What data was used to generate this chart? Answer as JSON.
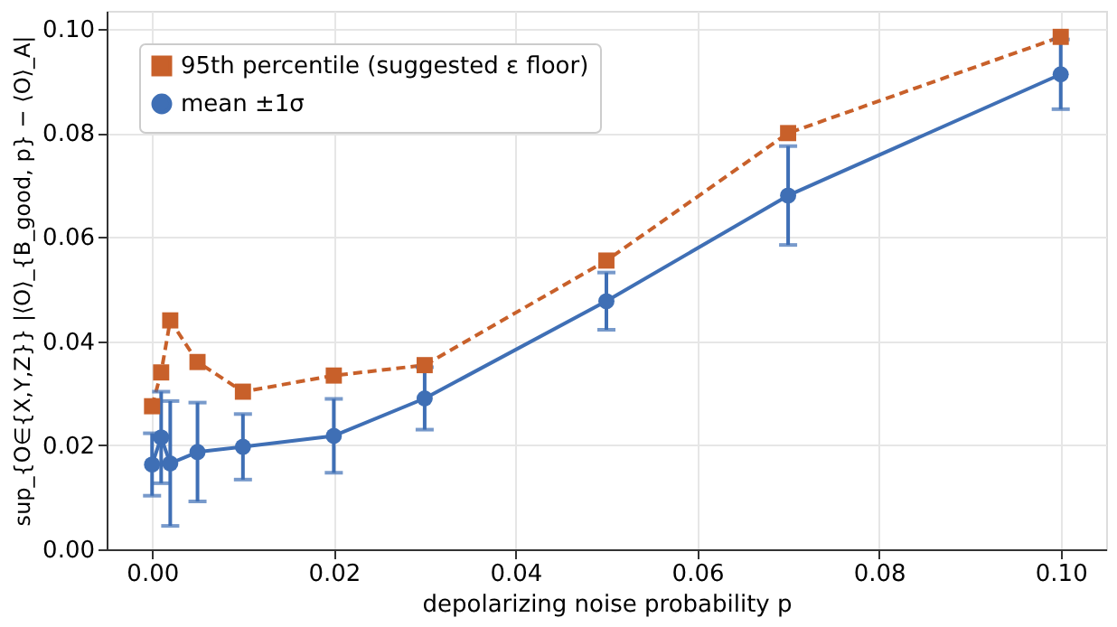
{
  "chart_data": {
    "type": "line",
    "xlabel": "depolarizing noise probability p",
    "ylabel": "sup_{O∈{X,Y,Z}} |⟨O⟩_{B_good, p} − ⟨O⟩_A|",
    "x": [
      0,
      0.001,
      0.002,
      0.005,
      0.01,
      0.02,
      0.03,
      0.05,
      0.07,
      0.1
    ],
    "series": [
      {
        "name": "95th percentile (suggested ε floor)",
        "color": "#c8602a",
        "marker": "square",
        "line_style": "dashed",
        "values": [
          0.0275,
          0.034,
          0.044,
          0.036,
          0.0303,
          0.0334,
          0.0354,
          0.0555,
          0.08,
          0.0985
        ]
      },
      {
        "name": "mean ±1σ",
        "color": "#3f6fb5",
        "marker": "circle",
        "line_style": "solid",
        "values": [
          0.0163,
          0.0215,
          0.0165,
          0.0187,
          0.0197,
          0.0218,
          0.029,
          0.0477,
          0.068,
          0.0913
        ],
        "errors": [
          0.006,
          0.0088,
          0.012,
          0.0095,
          0.0063,
          0.0071,
          0.006,
          0.0055,
          0.0095,
          0.0067
        ]
      }
    ],
    "xlim": [
      -0.005,
      0.105
    ],
    "ylim": [
      0,
      0.1035
    ],
    "xticks": [
      {
        "value": 0,
        "label": "0.00"
      },
      0.02,
      0.04,
      0.06,
      0.08,
      {
        "value": 0.1,
        "label": "0.10"
      }
    ],
    "yticks": [
      {
        "value": 0,
        "label": "0.00"
      },
      0.02,
      0.04,
      0.06,
      0.08,
      {
        "value": 0.1,
        "label": "0.10"
      }
    ],
    "grid": true,
    "legend": "top left"
  }
}
